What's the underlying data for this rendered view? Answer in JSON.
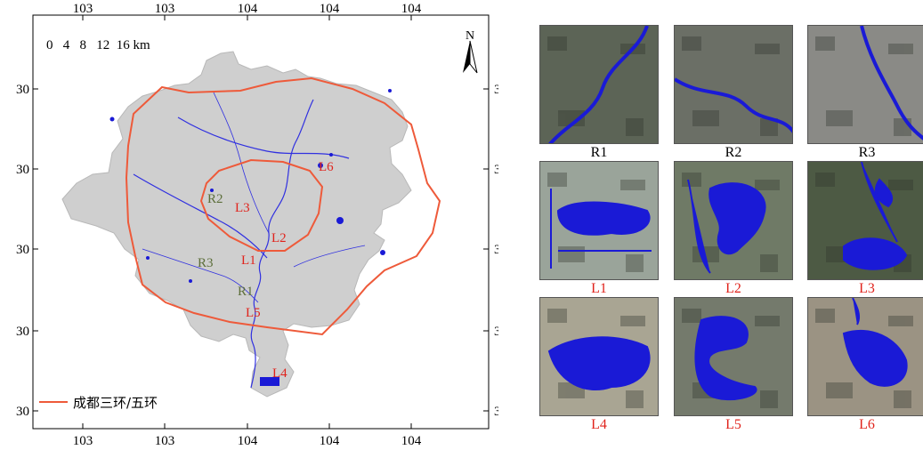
{
  "map": {
    "x_tick_labels": [
      "103",
      "103",
      "104",
      "104",
      "104"
    ],
    "y_tick_labels": [
      "30",
      "30",
      "30",
      "30",
      "30"
    ],
    "scale_bar_label": "0   4   8   12  16 km",
    "north_label": "N",
    "legend_label": "成都三环/五环",
    "site_labels": [
      {
        "id": "R2",
        "label": "R2",
        "kind": "river"
      },
      {
        "id": "L3",
        "label": "L3",
        "kind": "lake"
      },
      {
        "id": "L6",
        "label": "L6",
        "kind": "lake"
      },
      {
        "id": "L2",
        "label": "L2",
        "kind": "lake"
      },
      {
        "id": "R3",
        "label": "R3",
        "kind": "river"
      },
      {
        "id": "L1",
        "label": "L1",
        "kind": "lake"
      },
      {
        "id": "R1",
        "label": "R1",
        "kind": "river"
      },
      {
        "id": "L5",
        "label": "L5",
        "kind": "lake"
      },
      {
        "id": "L4",
        "label": "L4",
        "kind": "lake"
      }
    ],
    "colors": {
      "land": "#cfcfcf",
      "water": "#1a1ad6",
      "ring_road": "#ee5a3a",
      "river_label": "#5c6e3a",
      "lake_label": "#e0231c"
    }
  },
  "tiles": [
    {
      "caption": "R1",
      "caption_color": "#000000",
      "kind": "river"
    },
    {
      "caption": "R2",
      "caption_color": "#000000",
      "kind": "river"
    },
    {
      "caption": "R3",
      "caption_color": "#000000",
      "kind": "river"
    },
    {
      "caption": "L1",
      "caption_color": "#e0231c",
      "kind": "lake"
    },
    {
      "caption": "L2",
      "caption_color": "#e0231c",
      "kind": "lake"
    },
    {
      "caption": "L3",
      "caption_color": "#e0231c",
      "kind": "lake"
    },
    {
      "caption": "L4",
      "caption_color": "#e0231c",
      "kind": "lake"
    },
    {
      "caption": "L5",
      "caption_color": "#e0231c",
      "kind": "lake"
    },
    {
      "caption": "L6",
      "caption_color": "#e0231c",
      "kind": "lake"
    }
  ]
}
